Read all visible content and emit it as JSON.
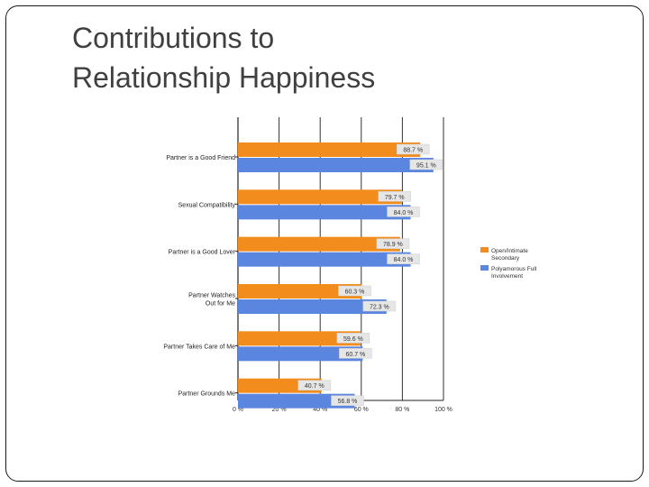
{
  "slide": {
    "title_line1": "Contributions to",
    "title_line2": "Relationship Happiness"
  },
  "chart_data": {
    "type": "bar",
    "orientation": "horizontal",
    "categories": [
      [
        "Partner is a Good Friend"
      ],
      [
        "Sexual Compatibility"
      ],
      [
        "Partner is a Good Lover"
      ],
      [
        "Partner Watches",
        "Out for Me"
      ],
      [
        "Partner Takes Care of Me"
      ],
      [
        "Partner Grounds Me"
      ]
    ],
    "series": [
      {
        "name": [
          "Open/Intimate",
          "Secondary"
        ],
        "color": "#f28c1c",
        "values": [
          88.7,
          79.7,
          78.9,
          60.3,
          59.6,
          40.7
        ],
        "labels": [
          "88.7 %",
          "79.7 %",
          "78.9 %",
          "60.3 %",
          "59.6 %",
          "40.7 %"
        ]
      },
      {
        "name": [
          "Polyamorous Full",
          "Involvement"
        ],
        "color": "#5b86e0",
        "values": [
          95.1,
          84.0,
          84.0,
          72.3,
          60.7,
          56.8
        ],
        "labels": [
          "95.1 %",
          "84.0 %",
          "84.0 %",
          "72.3 %",
          "60.7 %",
          "56.8 %"
        ]
      }
    ],
    "xlim": [
      0,
      100
    ],
    "xticks": [
      "0 %",
      "20 %",
      "40 %",
      "60 %",
      "80 %",
      "100 %"
    ],
    "grid": true,
    "legend_position": "right"
  }
}
